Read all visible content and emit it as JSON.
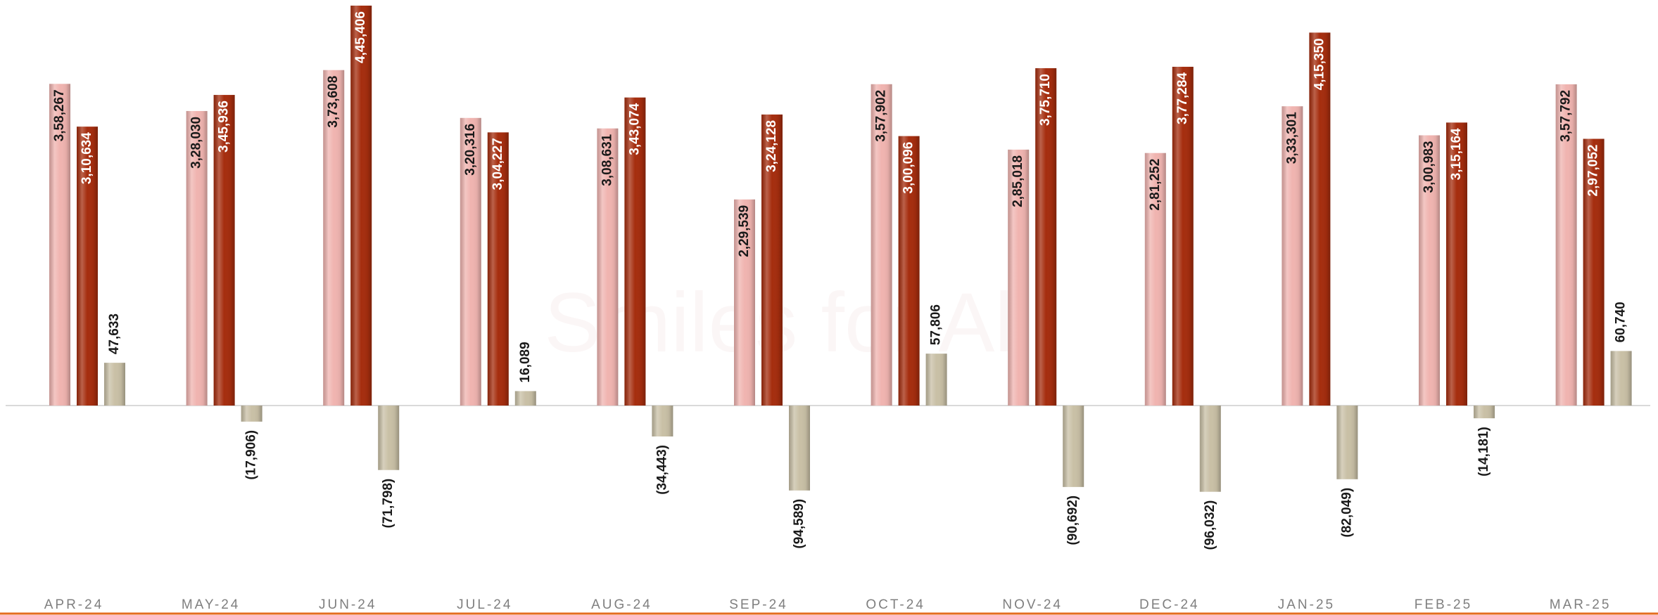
{
  "chart_data": {
    "type": "bar",
    "watermark": "Smiles for All",
    "categories": [
      "APR-24",
      "MAY-24",
      "JUN-24",
      "JUL-24",
      "AUG-24",
      "SEP-24",
      "OCT-24",
      "NOV-24",
      "DEC-24",
      "JAN-25",
      "FEB-25",
      "MAR-25"
    ],
    "series": [
      {
        "color": "#f0b4b0",
        "values": [
          358267,
          328030,
          373608,
          320316,
          308631,
          229539,
          357902,
          285018,
          281252,
          333301,
          300983,
          357792
        ],
        "value_labels": [
          "3,58,267",
          "3,28,030",
          "3,73,608",
          "3,20,316",
          "3,08,631",
          "2,29,539",
          "3,57,902",
          "2,85,018",
          "2,81,252",
          "3,33,301",
          "3,00,983",
          "3,57,792"
        ]
      },
      {
        "color": "#a52d0e",
        "values": [
          310634,
          345936,
          445406,
          304227,
          343074,
          324128,
          300096,
          375710,
          377284,
          415350,
          315164,
          297052
        ],
        "value_labels": [
          "3,10,634",
          "3,45,936",
          "4,45,406",
          "3,04,227",
          "3,43,074",
          "3,24,128",
          "3,00,096",
          "3,75,710",
          "3,77,284",
          "4,15,350",
          "3,15,164",
          "2,97,052"
        ]
      },
      {
        "color": "#c9c0a6",
        "values": [
          47633,
          -17906,
          -71798,
          16089,
          -34443,
          -94589,
          57806,
          -90692,
          -96032,
          -82049,
          -14181,
          60740
        ],
        "value_labels": [
          "47,633",
          "(17,906)",
          "(71,798)",
          "16,089",
          "(34,443)",
          "(94,589)",
          "57,806",
          "(90,692)",
          "(96,032)",
          "(82,049)",
          "(14,181)",
          "60,740"
        ]
      }
    ]
  }
}
